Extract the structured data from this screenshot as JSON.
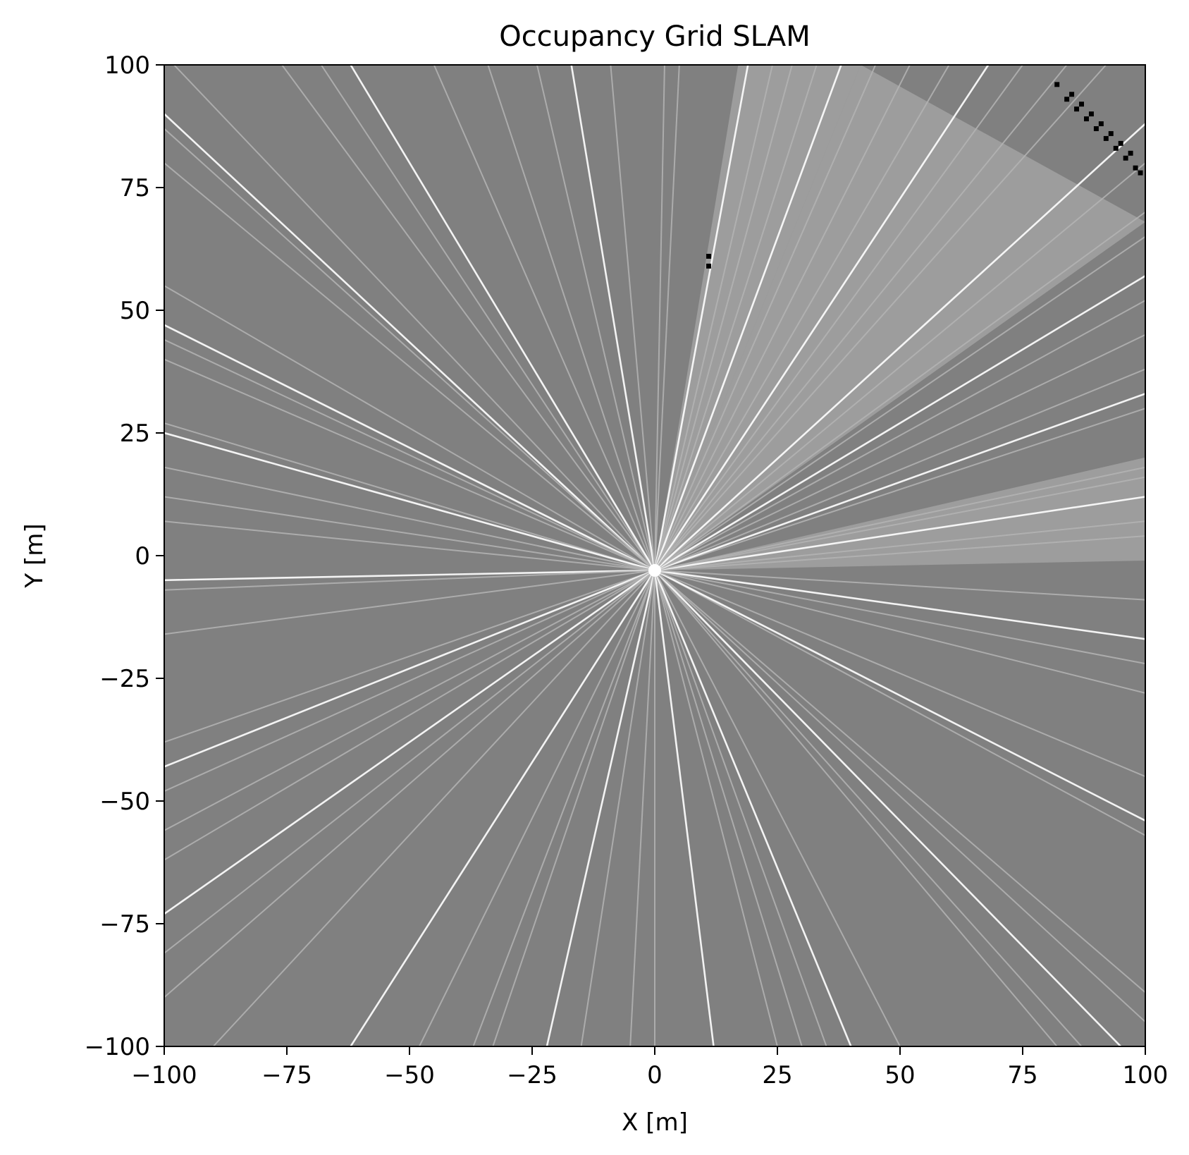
{
  "chart_data": {
    "type": "heatmap",
    "title": "Occupancy Grid SLAM",
    "xlabel": "X [m]",
    "ylabel": "Y [m]",
    "xlim": [
      -100,
      100
    ],
    "ylim": [
      -100,
      100
    ],
    "xticks": [
      -100,
      -75,
      -50,
      -25,
      0,
      25,
      50,
      75,
      100
    ],
    "yticks": [
      -100,
      -75,
      -50,
      -25,
      0,
      25,
      50,
      75,
      100
    ],
    "xtick_labels": [
      "−100",
      "−75",
      "−50",
      "−25",
      "0",
      "25",
      "50",
      "75",
      "100"
    ],
    "ytick_labels": [
      "−100",
      "−75",
      "−50",
      "−25",
      "0",
      "25",
      "50",
      "75",
      "100"
    ],
    "grid": false,
    "colormap": "gray_r",
    "colors": {
      "unknown": "#808080",
      "observed_free": "#b4b4b4",
      "free": "#ffffff",
      "occupied": "#000000"
    },
    "sensor_origin": [
      0,
      -3
    ],
    "beam_endpoints": [
      [
        -100,
        90
      ],
      [
        -100,
        87
      ],
      [
        -100,
        80
      ],
      [
        -100,
        55
      ],
      [
        -100,
        47
      ],
      [
        -100,
        44
      ],
      [
        -100,
        40
      ],
      [
        -100,
        27
      ],
      [
        -100,
        25
      ],
      [
        -100,
        18
      ],
      [
        -100,
        12
      ],
      [
        -100,
        7
      ],
      [
        -100,
        -5
      ],
      [
        -100,
        -7
      ],
      [
        -100,
        -16
      ],
      [
        -100,
        -38
      ],
      [
        -100,
        -43
      ],
      [
        -100,
        -48
      ],
      [
        -100,
        -56
      ],
      [
        -100,
        -62
      ],
      [
        -100,
        -73
      ],
      [
        -100,
        -81
      ],
      [
        -100,
        -90
      ],
      [
        -90,
        -100
      ],
      [
        -62,
        -100
      ],
      [
        -48,
        -100
      ],
      [
        -37,
        -100
      ],
      [
        -33,
        -100
      ],
      [
        -22,
        -100
      ],
      [
        -15,
        -100
      ],
      [
        -5,
        -100
      ],
      [
        0,
        -100
      ],
      [
        12,
        -100
      ],
      [
        25,
        -100
      ],
      [
        30,
        -100
      ],
      [
        35,
        -100
      ],
      [
        40,
        -100
      ],
      [
        50,
        -100
      ],
      [
        82,
        -100
      ],
      [
        87,
        -100
      ],
      [
        95,
        -100
      ],
      [
        100,
        -95
      ],
      [
        100,
        -89
      ],
      [
        100,
        -57
      ],
      [
        100,
        -54
      ],
      [
        100,
        -45
      ],
      [
        100,
        -28
      ],
      [
        100,
        -22
      ],
      [
        100,
        -17
      ],
      [
        100,
        -9
      ],
      [
        100,
        4
      ],
      [
        100,
        7
      ],
      [
        100,
        12
      ],
      [
        100,
        16
      ],
      [
        100,
        18
      ],
      [
        100,
        30
      ],
      [
        100,
        33
      ],
      [
        100,
        38
      ],
      [
        100,
        45
      ],
      [
        100,
        52
      ],
      [
        100,
        57
      ],
      [
        100,
        65
      ],
      [
        100,
        70
      ],
      [
        100,
        80
      ],
      [
        100,
        88
      ],
      [
        -98,
        100
      ],
      [
        -76,
        100
      ],
      [
        -68,
        100
      ],
      [
        -62,
        100
      ],
      [
        -45,
        100
      ],
      [
        -34,
        100
      ],
      [
        -24,
        100
      ],
      [
        -17,
        100
      ],
      [
        -9,
        100
      ],
      [
        2,
        100
      ],
      [
        5,
        100
      ],
      [
        19,
        100
      ],
      [
        24,
        100
      ],
      [
        28,
        100
      ],
      [
        33,
        100
      ],
      [
        38,
        100
      ],
      [
        45,
        100
      ],
      [
        52,
        100
      ],
      [
        60,
        100
      ],
      [
        68,
        100
      ],
      [
        75,
        100
      ],
      [
        84,
        100
      ],
      [
        92,
        100
      ]
    ],
    "free_wedges": [
      {
        "from": [
          17,
          100
        ],
        "to": [
          42,
          100
        ]
      },
      {
        "from": [
          42,
          100
        ],
        "to": [
          100,
          68
        ]
      },
      {
        "from": [
          100,
          20
        ],
        "to": [
          100,
          -1
        ]
      }
    ],
    "occupied_cells": [
      [
        82,
        96
      ],
      [
        84,
        93
      ],
      [
        85,
        94
      ],
      [
        86,
        91
      ],
      [
        87,
        92
      ],
      [
        88,
        89
      ],
      [
        89,
        90
      ],
      [
        90,
        87
      ],
      [
        91,
        88
      ],
      [
        92,
        85
      ],
      [
        93,
        86
      ],
      [
        94,
        83
      ],
      [
        95,
        84
      ],
      [
        96,
        81
      ],
      [
        97,
        82
      ],
      [
        98,
        79
      ],
      [
        99,
        78
      ],
      [
        11,
        61
      ],
      [
        11,
        59
      ]
    ]
  }
}
